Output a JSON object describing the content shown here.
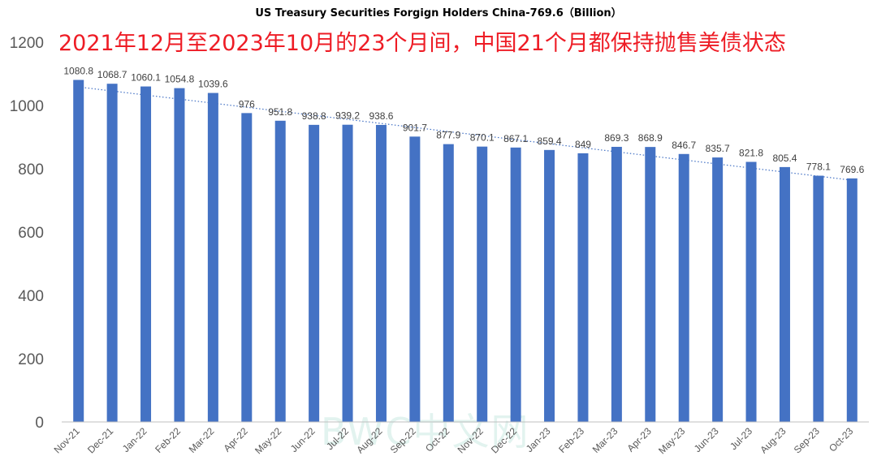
{
  "watermark": "BWC中文网",
  "chart_data": {
    "type": "bar",
    "title": "US Treasury Securities Forgign Holders China-769.6（Billion）",
    "headline": "2021年12月至2023年10月的23个月间，中国21个月都保持抛售美债状态",
    "xlabel": "",
    "ylabel": "",
    "ylim": [
      0,
      1200
    ],
    "yticks": [
      0,
      200,
      400,
      600,
      800,
      1000,
      1200
    ],
    "grid": false,
    "trendline": "linear-dotted",
    "bar_color": "#4472c4",
    "trend_color": "#4472c4",
    "categories": [
      "Nov-21",
      "Dec-21",
      "Jan-22",
      "Feb-22",
      "Mar-22",
      "Apr-22",
      "May-22",
      "Jun-22",
      "Jul-22",
      "Aug-22",
      "Sep-22",
      "Oct-22",
      "Nov-22",
      "Dec-22",
      "Jan-23",
      "Feb-23",
      "Mar-23",
      "Apr-23",
      "May-23",
      "Jun-23",
      "Jul-23",
      "Aug-23",
      "Sep-23",
      "Oct-23"
    ],
    "values": [
      1080.8,
      1068.7,
      1060.1,
      1054.8,
      1039.6,
      976,
      951.8,
      938.8,
      939.2,
      938.6,
      901.7,
      877.9,
      870.1,
      867.1,
      859.4,
      849,
      869.3,
      868.9,
      846.7,
      835.7,
      821.8,
      805.4,
      778.1,
      769.6
    ],
    "value_labels": [
      "1080.8",
      "1068.7",
      "1060.1",
      "1054.8",
      "1039.6",
      "976",
      "951.8",
      "938.8",
      "939.2",
      "938.6",
      "901.7",
      "877.9",
      "870.1",
      "867.1",
      "859.4",
      "849",
      "869.3",
      "868.9",
      "846.7",
      "835.7",
      "821.8",
      "805.4",
      "778.1",
      "769.6"
    ]
  }
}
